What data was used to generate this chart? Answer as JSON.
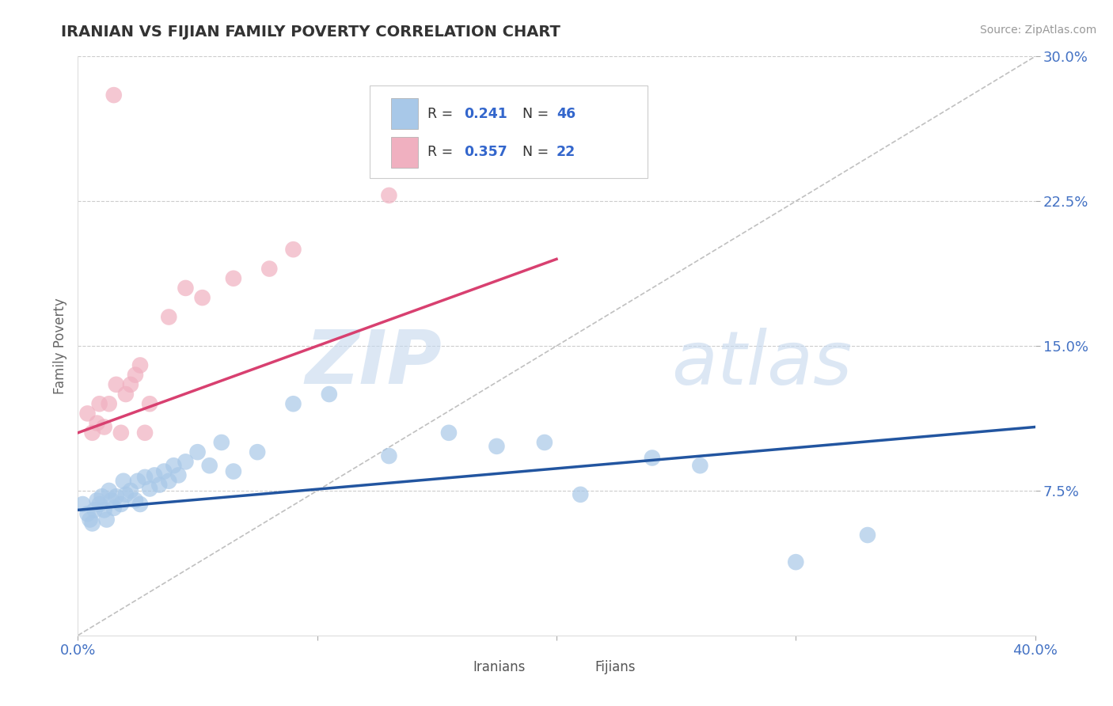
{
  "title": "IRANIAN VS FIJIAN FAMILY POVERTY CORRELATION CHART",
  "source": "Source: ZipAtlas.com",
  "ylabel_label": "Family Poverty",
  "x_min": 0.0,
  "x_max": 0.4,
  "y_min": 0.0,
  "y_max": 0.3,
  "x_ticks": [
    0.0,
    0.1,
    0.2,
    0.3,
    0.4
  ],
  "x_tick_labels": [
    "0.0%",
    "",
    "",
    "",
    "40.0%"
  ],
  "y_ticks": [
    0.075,
    0.15,
    0.225,
    0.3
  ],
  "y_tick_labels": [
    "7.5%",
    "15.0%",
    "22.5%",
    "30.0%"
  ],
  "iranian_R": 0.241,
  "iranian_N": 46,
  "fijian_R": 0.357,
  "fijian_N": 22,
  "iranian_color": "#a8c8e8",
  "fijian_color": "#f0b0c0",
  "iranian_line_color": "#2255a0",
  "fijian_line_color": "#d84070",
  "diagonal_color": "#c0c0c0",
  "grid_color": "#cccccc",
  "watermark_text": "ZIPatlas",
  "watermark_color": "#c8d8ee",
  "legend_text_color": "#333333",
  "legend_num_color": "#3366cc",
  "iranians_x": [
    0.002,
    0.004,
    0.005,
    0.006,
    0.007,
    0.008,
    0.009,
    0.01,
    0.011,
    0.012,
    0.013,
    0.014,
    0.015,
    0.016,
    0.018,
    0.019,
    0.02,
    0.022,
    0.024,
    0.025,
    0.026,
    0.028,
    0.03,
    0.032,
    0.034,
    0.036,
    0.038,
    0.04,
    0.042,
    0.045,
    0.05,
    0.055,
    0.06,
    0.065,
    0.075,
    0.09,
    0.105,
    0.13,
    0.155,
    0.175,
    0.195,
    0.21,
    0.24,
    0.26,
    0.3,
    0.33
  ],
  "iranians_y": [
    0.068,
    0.063,
    0.06,
    0.058,
    0.065,
    0.07,
    0.068,
    0.072,
    0.065,
    0.06,
    0.075,
    0.07,
    0.066,
    0.072,
    0.068,
    0.08,
    0.073,
    0.075,
    0.07,
    0.08,
    0.068,
    0.082,
    0.076,
    0.083,
    0.078,
    0.085,
    0.08,
    0.088,
    0.083,
    0.09,
    0.095,
    0.088,
    0.1,
    0.085,
    0.095,
    0.12,
    0.125,
    0.093,
    0.105,
    0.098,
    0.1,
    0.073,
    0.092,
    0.088,
    0.038,
    0.052
  ],
  "fijians_x": [
    0.004,
    0.006,
    0.008,
    0.009,
    0.011,
    0.013,
    0.015,
    0.016,
    0.018,
    0.02,
    0.022,
    0.024,
    0.026,
    0.028,
    0.03,
    0.038,
    0.045,
    0.052,
    0.065,
    0.08,
    0.09,
    0.13
  ],
  "fijians_y": [
    0.115,
    0.105,
    0.11,
    0.12,
    0.108,
    0.12,
    0.28,
    0.13,
    0.105,
    0.125,
    0.13,
    0.135,
    0.14,
    0.105,
    0.12,
    0.165,
    0.18,
    0.175,
    0.185,
    0.19,
    0.2,
    0.228
  ],
  "iran_line_x0": 0.0,
  "iran_line_y0": 0.065,
  "iran_line_x1": 0.4,
  "iran_line_y1": 0.108,
  "fiji_line_x0": 0.0,
  "fiji_line_y0": 0.105,
  "fiji_line_x1": 0.2,
  "fiji_line_y1": 0.195
}
